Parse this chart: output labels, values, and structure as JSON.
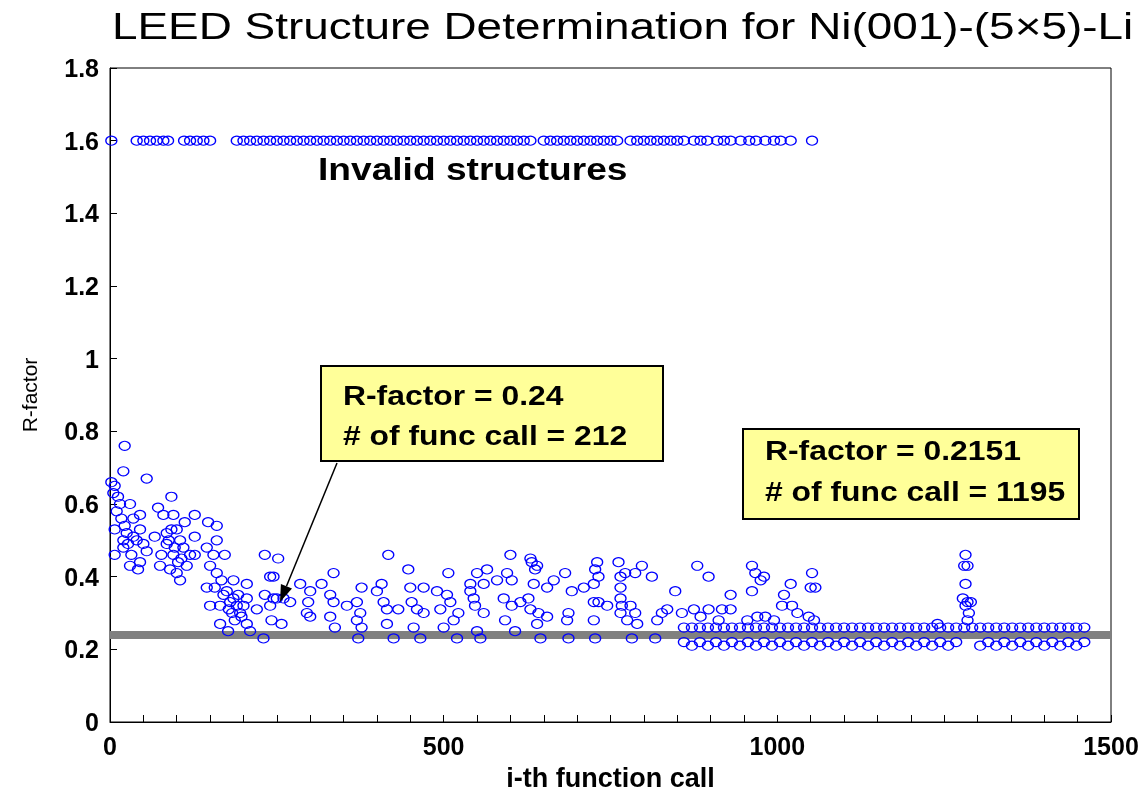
{
  "chart_data": {
    "type": "scatter",
    "title": "LEED Structure Determination for Ni(001)-(5×5)-Li",
    "xlabel": "i-th function call",
    "ylabel": "R-factor",
    "color": "#0000ff",
    "marker": "circle",
    "xlim": [
      0,
      1500
    ],
    "xticks": [
      0,
      {
        "value": 50,
        "label": null
      },
      {
        "value": 100,
        "label": null
      },
      {
        "value": 150,
        "label": null
      },
      {
        "value": 200,
        "label": null
      },
      {
        "value": 250,
        "label": null
      },
      {
        "value": 300,
        "label": null
      },
      {
        "value": 350,
        "label": null
      },
      {
        "value": 400,
        "label": null
      },
      {
        "value": 450,
        "label": null
      },
      500,
      {
        "value": 550,
        "label": null
      },
      {
        "value": 600,
        "label": null
      },
      {
        "value": 650,
        "label": null
      },
      {
        "value": 700,
        "label": null
      },
      {
        "value": 750,
        "label": null
      },
      {
        "value": 800,
        "label": null
      },
      {
        "value": 850,
        "label": null
      },
      {
        "value": 900,
        "label": null
      },
      {
        "value": 950,
        "label": null
      },
      1000,
      {
        "value": 1050,
        "label": null
      },
      {
        "value": 1100,
        "label": null
      },
      {
        "value": 1150,
        "label": null
      },
      {
        "value": 1200,
        "label": null
      },
      {
        "value": 1250,
        "label": null
      },
      {
        "value": 1300,
        "label": null
      },
      {
        "value": 1350,
        "label": null
      },
      {
        "value": 1400,
        "label": null
      },
      {
        "value": 1450,
        "label": null
      },
      1500
    ],
    "ylim": [
      0,
      1.8
    ],
    "yticks": [
      0,
      0.2,
      0.4,
      0.6,
      0.8,
      1,
      1.2,
      1.4,
      1.6,
      1.8
    ],
    "ref_lines": [
      {
        "axis": "y",
        "value": 0.24,
        "color": "#808080"
      }
    ],
    "annotations": [
      "Invalid structures",
      "R-factor = 0.24\n# of func call = 212",
      "R-factor = 0.2151\n# of func call = 1195"
    ],
    "x": [
      2,
      5,
      7,
      7,
      7,
      10,
      12,
      15,
      17,
      20,
      20,
      20,
      22,
      22,
      25,
      27,
      30,
      30,
      32,
      35,
      35,
      40,
      42,
      45,
      45,
      45,
      50,
      55,
      55,
      67,
      72,
      75,
      77,
      80,
      85,
      85,
      88,
      90,
      92,
      92,
      95,
      95,
      97,
      100,
      100,
      102,
      105,
      105,
      107,
      110,
      112,
      115,
      120,
      127,
      127,
      127,
      145,
      145,
      147,
      150,
      150,
      155,
      157,
      160,
      160,
      160,
      165,
      165,
      167,
      170,
      172,
      175,
      177,
      178,
      180,
      183,
      185,
      185,
      187,
      190,
      192,
      195,
      197,
      200,
      205,
      205,
      205,
      210,
      220,
      230,
      232,
      232,
      240,
      240,
      242,
      245,
      245,
      250,
      252,
      257,
      260,
      270,
      285,
      295,
      297,
      300,
      300,
      317,
      330,
      330,
      335,
      335,
      337,
      355,
      370,
      370,
      372,
      375,
      377,
      377,
      400,
      407,
      410,
      415,
      415,
      417,
      425,
      432,
      447,
      450,
      452,
      455,
      460,
      465,
      470,
      470,
      490,
      495,
      500,
      505,
      507,
      510,
      515,
      520,
      522,
      540,
      540,
      545,
      547,
      550,
      550,
      555,
      560,
      560,
      565,
      580,
      590,
      592,
      595,
      600,
      602,
      602,
      607,
      615,
      627,
      630,
      630,
      632,
      635,
      637,
      640,
      640,
      642,
      645,
      655,
      655,
      665,
      682,
      685,
      687,
      687,
      692,
      710,
      725,
      725,
      725,
      727,
      727,
      730,
      732,
      732,
      745,
      762,
      765,
      765,
      765,
      765,
      767,
      772,
      775,
      780,
      782,
      787,
      787,
      790,
      797,
      812,
      817,
      820,
      827,
      835,
      847,
      857,
      875,
      880,
      885,
      897,
      897,
      912,
      917,
      930,
      930,
      955,
      962,
      962,
      967,
      970,
      975,
      980,
      982,
      995,
      1007,
      1010,
      1020,
      1022,
      1030,
      1047,
      1050,
      1052,
      1055,
      1057,
      1240,
      1278,
      1280,
      1282,
      1282,
      1282,
      1285,
      1285,
      1285,
      1287,
      1290,
      2,
      40,
      50,
      60,
      70,
      80,
      87,
      111,
      120,
      130,
      140,
      150,
      190,
      200,
      210,
      220,
      230,
      240,
      250,
      260,
      270,
      280,
      290,
      300,
      310,
      320,
      330,
      340,
      350,
      360,
      370,
      380,
      390,
      400,
      410,
      420,
      430,
      440,
      450,
      460,
      470,
      480,
      490,
      500,
      510,
      520,
      530,
      540,
      550,
      560,
      570,
      580,
      590,
      600,
      610,
      620,
      630,
      650,
      660,
      670,
      680,
      690,
      700,
      710,
      720,
      730,
      740,
      750,
      760,
      780,
      790,
      800,
      810,
      820,
      830,
      840,
      850,
      860,
      875,
      885,
      895,
      910,
      920,
      930,
      945,
      958,
      968,
      982,
      995,
      1005,
      1020,
      1052,
      860,
      872,
      884,
      896,
      908,
      920,
      932,
      944,
      956,
      968,
      980,
      992,
      1004,
      1016,
      1028,
      1040,
      1052,
      1064,
      1076,
      1088,
      1100,
      1112,
      1124,
      1136,
      1148,
      1160,
      1172,
      1184,
      1196,
      1208,
      1220,
      1232,
      1244,
      1256,
      1268,
      1280,
      1292,
      1304,
      1316,
      1328,
      1340,
      1352,
      1364,
      1376,
      1388,
      1400,
      1412,
      1424,
      1436,
      1448,
      1460,
      860,
      872,
      884,
      896,
      908,
      920,
      932,
      944,
      956,
      968,
      980,
      992,
      1004,
      1016,
      1028,
      1040,
      1052,
      1064,
      1076,
      1088,
      1100,
      1112,
      1124,
      1136,
      1148,
      1160,
      1172,
      1184,
      1196,
      1208,
      1220,
      1232,
      1244,
      1256,
      1268,
      1304,
      1316,
      1328,
      1340,
      1352,
      1364,
      1376,
      1388,
      1400,
      1412,
      1424,
      1436,
      1448,
      1460
    ],
    "values": [
      0.66,
      0.63,
      0.65,
      0.53,
      0.46,
      0.58,
      0.62,
      0.6,
      0.56,
      0.69,
      0.5,
      0.48,
      0.76,
      0.54,
      0.52,
      0.49,
      0.6,
      0.43,
      0.46,
      0.56,
      0.51,
      0.5,
      0.42,
      0.57,
      0.53,
      0.44,
      0.49,
      0.67,
      0.47,
      0.51,
      0.59,
      0.43,
      0.46,
      0.57,
      0.52,
      0.49,
      0.5,
      0.42,
      0.62,
      0.53,
      0.57,
      0.46,
      0.48,
      0.53,
      0.41,
      0.44,
      0.5,
      0.39,
      0.45,
      0.48,
      0.55,
      0.43,
      0.46,
      0.46,
      0.51,
      0.57,
      0.48,
      0.37,
      0.55,
      0.43,
      0.32,
      0.46,
      0.37,
      0.54,
      0.5,
      0.41,
      0.32,
      0.27,
      0.39,
      0.35,
      0.46,
      0.36,
      0.25,
      0.31,
      0.33,
      0.3,
      0.39,
      0.34,
      0.28,
      0.32,
      0.35,
      0.3,
      0.29,
      0.32,
      0.38,
      0.34,
      0.27,
      0.25,
      0.31,
      0.23,
      0.46,
      0.35,
      0.4,
      0.32,
      0.28,
      0.4,
      0.34,
      0.34,
      0.45,
      0.27,
      0.34,
      0.33,
      0.38,
      0.3,
      0.33,
      0.36,
      0.29,
      0.38,
      0.35,
      0.29,
      0.41,
      0.33,
      0.26,
      0.32,
      0.33,
      0.28,
      0.23,
      0.3,
      0.37,
      0.26,
      0.36,
      0.38,
      0.33,
      0.31,
      0.27,
      0.46,
      0.23,
      0.31,
      0.42,
      0.37,
      0.33,
      0.26,
      0.31,
      0.23,
      0.37,
      0.3,
      0.36,
      0.31,
      0.26,
      0.35,
      0.41,
      0.33,
      0.28,
      0.23,
      0.3,
      0.38,
      0.36,
      0.34,
      0.32,
      0.41,
      0.25,
      0.23,
      0.38,
      0.3,
      0.42,
      0.39,
      0.34,
      0.28,
      0.41,
      0.46,
      0.39,
      0.32,
      0.25,
      0.33,
      0.34,
      0.45,
      0.31,
      0.44,
      0.38,
      0.42,
      0.43,
      0.27,
      0.3,
      0.23,
      0.37,
      0.29,
      0.39,
      0.41,
      0.28,
      0.3,
      0.23,
      0.36,
      0.37,
      0.38,
      0.33,
      0.28,
      0.42,
      0.23,
      0.44,
      0.4,
      0.33,
      0.32,
      0.44,
      0.4,
      0.37,
      0.34,
      0.3,
      0.32,
      0.41,
      0.28,
      0.32,
      0.23,
      0.41,
      0.3,
      0.27,
      0.43,
      0.4,
      0.23,
      0.28,
      0.3,
      0.31,
      0.36,
      0.3,
      0.31,
      0.43,
      0.29,
      0.31,
      0.4,
      0.28,
      0.31,
      0.31,
      0.35,
      0.28,
      0.43,
      0.36,
      0.41,
      0.29,
      0.39,
      0.4,
      0.29,
      0.28,
      0.32,
      0.35,
      0.38,
      0.32,
      0.3,
      0.29,
      0.37,
      0.41,
      0.28,
      0.37,
      0.27,
      0.34,
      0.43,
      0.46,
      0.38,
      0.32,
      0.43,
      0.33,
      0.28,
      0.3,
      0.33,
      1.6,
      1.6,
      1.6,
      1.6,
      1.6,
      1.6,
      1.6,
      1.6,
      1.6,
      1.6,
      1.6,
      1.6,
      1.6,
      1.6,
      1.6,
      1.6,
      1.6,
      1.6,
      1.6,
      1.6,
      1.6,
      1.6,
      1.6,
      1.6,
      1.6,
      1.6,
      1.6,
      1.6,
      1.6,
      1.6,
      1.6,
      1.6,
      1.6,
      1.6,
      1.6,
      1.6,
      1.6,
      1.6,
      1.6,
      1.6,
      1.6,
      1.6,
      1.6,
      1.6,
      1.6,
      1.6,
      1.6,
      1.6,
      1.6,
      1.6,
      1.6,
      1.6,
      1.6,
      1.6,
      1.6,
      1.6,
      1.6,
      1.6,
      1.6,
      1.6,
      1.6,
      1.6,
      1.6,
      1.6,
      1.6,
      1.6,
      1.6,
      1.6,
      1.6,
      1.6,
      1.6,
      1.6,
      1.6,
      1.6,
      1.6,
      1.6,
      1.6,
      1.6,
      1.6,
      1.6,
      1.6,
      1.6,
      1.6,
      1.6,
      1.6,
      1.6,
      1.6,
      1.6,
      1.6,
      1.6,
      1.6,
      1.6,
      0.26,
      0.26,
      0.26,
      0.26,
      0.26,
      0.26,
      0.26,
      0.26,
      0.26,
      0.26,
      0.26,
      0.26,
      0.26,
      0.26,
      0.26,
      0.26,
      0.26,
      0.26,
      0.26,
      0.26,
      0.26,
      0.26,
      0.26,
      0.26,
      0.26,
      0.26,
      0.26,
      0.26,
      0.26,
      0.26,
      0.26,
      0.26,
      0.26,
      0.26,
      0.26,
      0.26,
      0.26,
      0.26,
      0.26,
      0.26,
      0.26,
      0.26,
      0.26,
      0.26,
      0.26,
      0.26,
      0.26,
      0.26,
      0.26,
      0.26,
      0.26,
      0.22,
      0.21,
      0.22,
      0.21,
      0.22,
      0.21,
      0.22,
      0.21,
      0.22,
      0.21,
      0.22,
      0.21,
      0.22,
      0.21,
      0.22,
      0.21,
      0.22,
      0.21,
      0.22,
      0.21,
      0.22,
      0.21,
      0.22,
      0.21,
      0.22,
      0.21,
      0.22,
      0.21,
      0.22,
      0.21,
      0.22,
      0.21,
      0.22,
      0.21,
      0.22,
      0.21,
      0.22,
      0.21,
      0.22,
      0.21,
      0.22,
      0.21,
      0.22,
      0.21,
      0.22,
      0.21,
      0.22,
      0.21,
      0.22
    ]
  }
}
